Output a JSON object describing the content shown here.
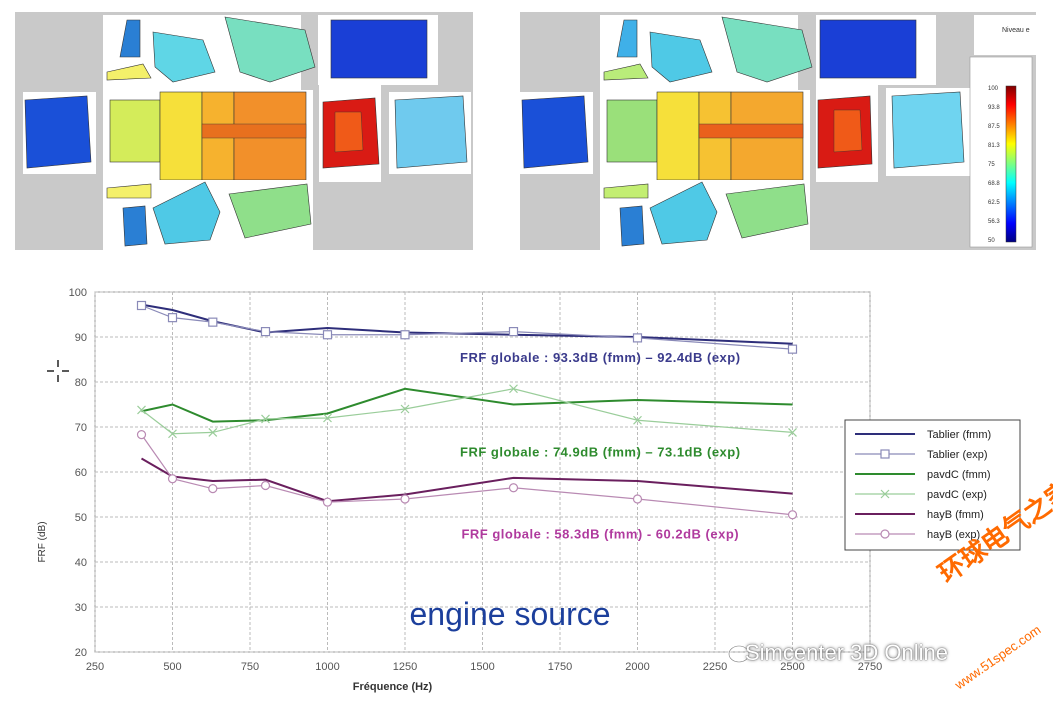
{
  "colorbar": {
    "title": "Niveau e",
    "ticks": [
      "100",
      "93.8",
      "87.5",
      "81.3",
      "75",
      "68.8",
      "62.5",
      "56.3",
      "50"
    ]
  },
  "chart_data": {
    "type": "line",
    "xlabel": "Fréquence (Hz)",
    "ylabel": "FRF (dB)",
    "xlim": [
      250,
      2750
    ],
    "ylim": [
      20,
      100
    ],
    "xticks": [
      "250",
      "500",
      "750",
      "1000",
      "1250",
      "1500",
      "1750",
      "2000",
      "2250",
      "2500",
      "2750"
    ],
    "yticks": [
      "20",
      "30",
      "40",
      "50",
      "60",
      "70",
      "80",
      "90",
      "100"
    ],
    "grid": true,
    "legend_position": "right",
    "series": [
      {
        "name": "Tablier (fmm)",
        "color": "#2e2e7a",
        "style": "solid",
        "marker": "none",
        "x": [
          400,
          500,
          630,
          800,
          1000,
          1250,
          1600,
          2000,
          2500
        ],
        "y": [
          97.2,
          96.0,
          93.5,
          91.0,
          92.0,
          91.0,
          90.5,
          90.0,
          88.5
        ]
      },
      {
        "name": "Tablier (exp)",
        "color": "#8a8ab8",
        "style": "thin",
        "marker": "square",
        "x": [
          400,
          500,
          630,
          800,
          1000,
          1250,
          1600,
          2000,
          2500
        ],
        "y": [
          97.0,
          94.3,
          93.3,
          91.2,
          90.5,
          90.5,
          91.2,
          89.8,
          87.3
        ]
      },
      {
        "name": "pavdC (fmm)",
        "color": "#2e8b2e",
        "style": "solid",
        "marker": "none",
        "x": [
          400,
          500,
          630,
          800,
          1000,
          1250,
          1600,
          2000,
          2500
        ],
        "y": [
          73.5,
          75.0,
          71.2,
          71.5,
          73.0,
          78.5,
          75.0,
          76.0,
          75.0
        ]
      },
      {
        "name": "pavdC (exp)",
        "color": "#9acd9a",
        "style": "thin",
        "marker": "x",
        "x": [
          400,
          500,
          630,
          800,
          1000,
          1250,
          1600,
          2000,
          2500
        ],
        "y": [
          73.8,
          68.5,
          68.8,
          71.8,
          72.0,
          74.0,
          78.5,
          71.5,
          68.8
        ]
      },
      {
        "name": "hayB (fmm)",
        "color": "#6a1f5e",
        "style": "solid",
        "marker": "none",
        "x": [
          400,
          500,
          630,
          800,
          1000,
          1250,
          1600,
          2000,
          2500
        ],
        "y": [
          63.0,
          59.0,
          58.0,
          58.3,
          53.5,
          55.0,
          58.7,
          58.0,
          55.2
        ]
      },
      {
        "name": "hayB (exp)",
        "color": "#b98ab3",
        "style": "thin",
        "marker": "circle",
        "x": [
          400,
          500,
          630,
          800,
          1000,
          1250,
          1600,
          2000,
          2500
        ],
        "y": [
          68.3,
          58.5,
          56.3,
          57.0,
          53.3,
          54.0,
          56.5,
          54.0,
          50.5
        ]
      }
    ],
    "annotations": [
      {
        "text": "FRF globale : 93.3dB (fmm) – 92.4dB (exp)",
        "color": "#3b3b8c",
        "x": 1880,
        "y": 84.5
      },
      {
        "text": "FRF globale : 74.9dB (fmm) – 73.1dB (exp)",
        "color": "#2e8b2e",
        "x": 1880,
        "y": 63.5
      },
      {
        "text": "FRF globale : 58.3dB (fmm) - 60.2dB (exp)",
        "color": "#b03a9e",
        "x": 1880,
        "y": 45.2
      }
    ],
    "caption": "engine source"
  },
  "watermarks": {
    "simcenter": "Simcenter 3D Online",
    "cn": "环球电气之家",
    "url": "www.51spec.com"
  }
}
